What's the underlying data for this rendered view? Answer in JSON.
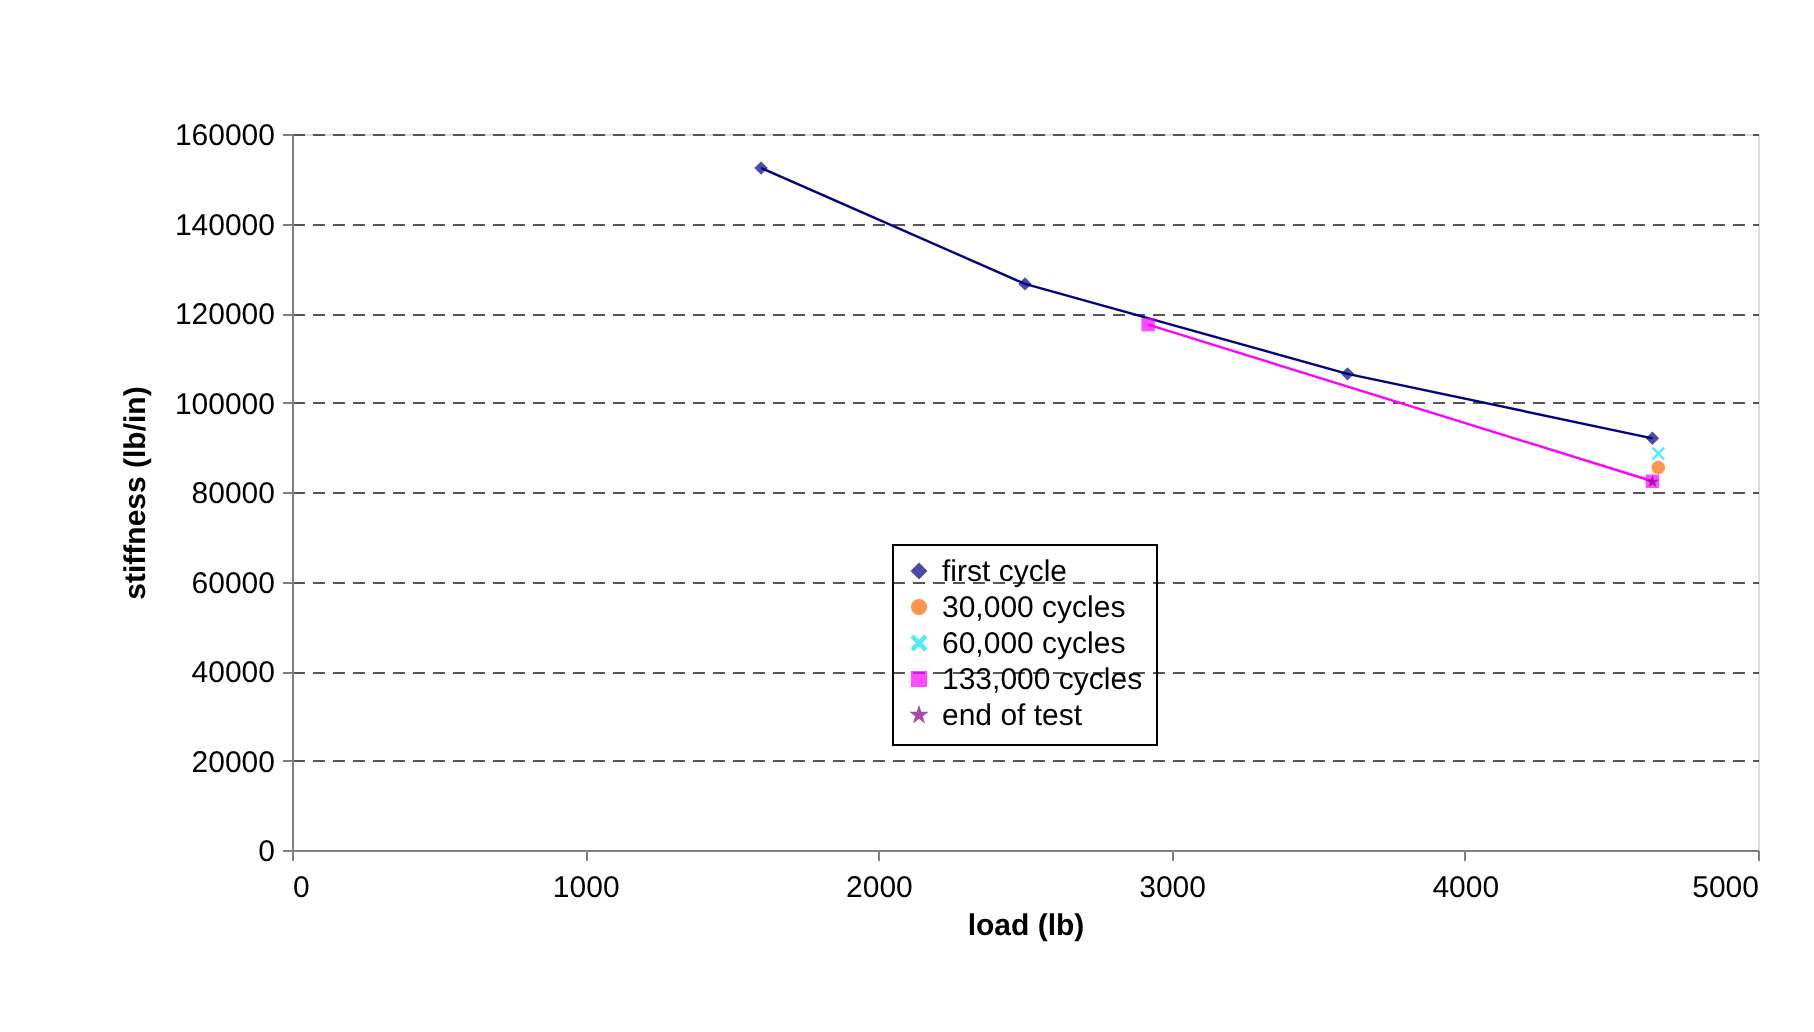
{
  "chart_data": {
    "type": "line",
    "xlabel": "load (lb)",
    "ylabel": "stiffness (lb/in)",
    "xlim": [
      0,
      5000
    ],
    "xticks": [
      0,
      1000,
      2000,
      3000,
      4000,
      5000
    ],
    "ylim": [
      0,
      160000
    ],
    "yticks": [
      0,
      20000,
      40000,
      60000,
      80000,
      100000,
      120000,
      140000,
      160000
    ],
    "grid": "y",
    "legend": "bottom",
    "line_style": "solid",
    "series": [
      {
        "name": "first cycle",
        "color": "#000080",
        "marker": "diamond",
        "x": [
          1600,
          2500,
          3600,
          4640
        ],
        "values": [
          152400,
          126500,
          106400,
          92000
        ]
      },
      {
        "name": "30,000 cycles",
        "color": "#ff6600",
        "marker": "circle",
        "x": [
          4660
        ],
        "values": [
          85500
        ]
      },
      {
        "name": "60,000 cycles",
        "color": "#00e5ee",
        "marker": "cross",
        "x": [
          4660
        ],
        "values": [
          88600
        ]
      },
      {
        "name": "133,000 cycles",
        "color": "#ff00ff",
        "marker": "square",
        "x": [
          2920,
          4640
        ],
        "values": [
          117400,
          82400
        ]
      },
      {
        "name": "end of test",
        "color": "#800080",
        "marker": "star",
        "x": [
          4640
        ],
        "values": [
          82300
        ]
      }
    ]
  }
}
